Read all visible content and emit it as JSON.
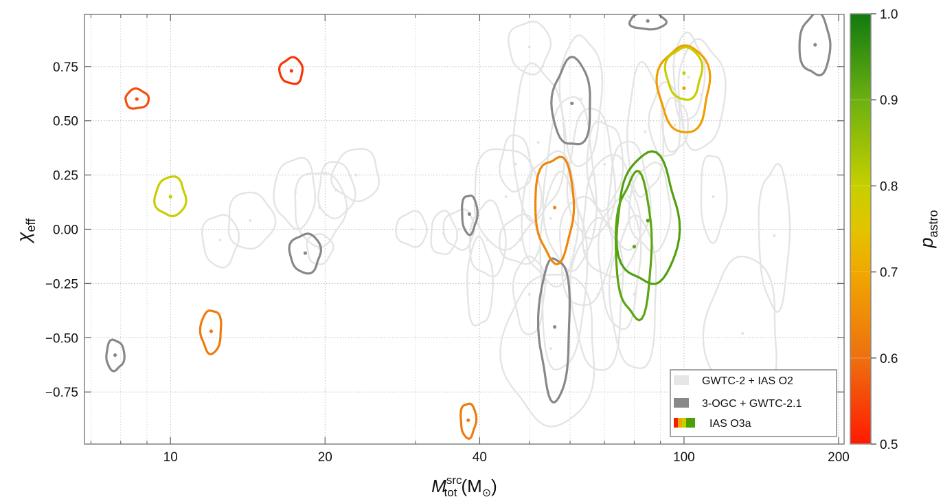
{
  "chart_data": {
    "type": "scatter",
    "title": "",
    "xlabel": {
      "main": "M",
      "sup": "src",
      "sub": "tot",
      "unit": "(M",
      "unit_sub": "⊙",
      "unit_close": ")"
    },
    "ylabel": {
      "main": "χ",
      "sub": "eff"
    },
    "colorbar_label": {
      "main": "p",
      "sub": "astro"
    },
    "x_scale": "log",
    "xlim": [
      6.8,
      205
    ],
    "ylim": [
      -0.99,
      0.99
    ],
    "x_ticks": [
      10,
      20,
      40,
      100,
      200
    ],
    "x_tick_labels": [
      "10",
      "20",
      "40",
      "100",
      "200"
    ],
    "y_ticks": [
      0.75,
      0.5,
      0.25,
      0.0,
      -0.25,
      -0.5,
      -0.75
    ],
    "y_tick_labels": [
      "0.75",
      "0.50",
      "0.25",
      "0.00",
      "−0.25",
      "−0.50",
      "−0.75"
    ],
    "colorbar": {
      "range": [
        0.5,
        1.0
      ],
      "ticks": [
        1.0,
        0.9,
        0.8,
        0.7,
        0.6,
        0.5
      ],
      "tick_labels": [
        "1.0",
        "0.9",
        "0.8",
        "0.7",
        "0.6",
        "0.5"
      ],
      "stops": [
        {
          "v": 0.5,
          "color": "#ff1a00"
        },
        {
          "v": 0.6,
          "color": "#ee7010"
        },
        {
          "v": 0.7,
          "color": "#f0a800"
        },
        {
          "v": 0.75,
          "color": "#e2c400"
        },
        {
          "v": 0.8,
          "color": "#c6cf00"
        },
        {
          "v": 0.9,
          "color": "#6cb010"
        },
        {
          "v": 1.0,
          "color": "#117a11"
        }
      ]
    },
    "grid": true,
    "legend": {
      "position": "bottom-right",
      "entries": [
        {
          "label": "GWTC-2 + IAS O2",
          "color": "#e6e6e6"
        },
        {
          "label": "3-OGC + GWTC-2.1",
          "color": "#888888"
        },
        {
          "label": "IAS O3a",
          "colors": [
            "#ee2200",
            "#f0a800",
            "#c6cf00",
            "#4ea000"
          ]
        }
      ]
    },
    "series": [
      {
        "name": "GWTC-2 + IAS O2",
        "color": "#e4e4e4",
        "points": [
          {
            "x": 12.5,
            "y": -0.05,
            "rx": 0.07,
            "ry": 0.12
          },
          {
            "x": 14.3,
            "y": 0.04,
            "rx": 0.09,
            "ry": 0.13
          },
          {
            "x": 17.5,
            "y": 0.17,
            "rx": 0.08,
            "ry": 0.16
          },
          {
            "x": 19.5,
            "y": 0.1,
            "rx": 0.1,
            "ry": 0.17
          },
          {
            "x": 21.0,
            "y": 0.18,
            "rx": 0.07,
            "ry": 0.13
          },
          {
            "x": 23.0,
            "y": 0.25,
            "rx": 0.09,
            "ry": 0.12
          },
          {
            "x": 19.5,
            "y": -0.09,
            "rx": 0.05,
            "ry": 0.07
          },
          {
            "x": 29.5,
            "y": 0.0,
            "rx": 0.06,
            "ry": 0.08
          },
          {
            "x": 34.0,
            "y": -0.02,
            "rx": 0.05,
            "ry": 0.1
          },
          {
            "x": 36.5,
            "y": 0.0,
            "rx": 0.06,
            "ry": 0.09
          },
          {
            "x": 41.5,
            "y": -0.05,
            "rx": 0.07,
            "ry": 0.17
          },
          {
            "x": 40.0,
            "y": -0.25,
            "rx": 0.05,
            "ry": 0.2
          },
          {
            "x": 45.0,
            "y": 0.15,
            "rx": 0.13,
            "ry": 0.23
          },
          {
            "x": 48.0,
            "y": -0.05,
            "rx": 0.08,
            "ry": 0.11
          },
          {
            "x": 50.0,
            "y": 0.84,
            "rx": 0.08,
            "ry": 0.12
          },
          {
            "x": 52.0,
            "y": 0.4,
            "rx": 0.1,
            "ry": 0.35
          },
          {
            "x": 55.0,
            "y": 0.05,
            "rx": 0.11,
            "ry": 0.3
          },
          {
            "x": 58.0,
            "y": -0.2,
            "rx": 0.09,
            "ry": 0.45
          },
          {
            "x": 60.0,
            "y": 0.2,
            "rx": 0.1,
            "ry": 0.4
          },
          {
            "x": 63.0,
            "y": 0.6,
            "rx": 0.08,
            "ry": 0.3
          },
          {
            "x": 64.0,
            "y": -0.1,
            "rx": 0.1,
            "ry": 0.25
          },
          {
            "x": 66.0,
            "y": 0.25,
            "rx": 0.09,
            "ry": 0.3
          },
          {
            "x": 68.0,
            "y": -0.3,
            "rx": 0.1,
            "ry": 0.35
          },
          {
            "x": 70.0,
            "y": 0.3,
            "rx": 0.07,
            "ry": 0.2
          },
          {
            "x": 72.0,
            "y": 0.05,
            "rx": 0.11,
            "ry": 0.28
          },
          {
            "x": 75.0,
            "y": -0.15,
            "rx": 0.08,
            "ry": 0.3
          },
          {
            "x": 78.0,
            "y": 0.15,
            "rx": 0.08,
            "ry": 0.25
          },
          {
            "x": 80.0,
            "y": -0.3,
            "rx": 0.09,
            "ry": 0.35
          },
          {
            "x": 84.0,
            "y": 0.45,
            "rx": 0.07,
            "ry": 0.3
          },
          {
            "x": 86.0,
            "y": 0.1,
            "rx": 0.08,
            "ry": 0.2
          },
          {
            "x": 92.0,
            "y": 0.5,
            "rx": 0.06,
            "ry": 0.17
          },
          {
            "x": 96.0,
            "y": 0.48,
            "rx": 0.05,
            "ry": 0.12
          },
          {
            "x": 102.0,
            "y": 0.7,
            "rx": 0.06,
            "ry": 0.2
          },
          {
            "x": 108.0,
            "y": 0.62,
            "rx": 0.09,
            "ry": 0.25
          },
          {
            "x": 114.0,
            "y": 0.15,
            "rx": 0.05,
            "ry": 0.2
          },
          {
            "x": 150.0,
            "y": -0.03,
            "rx": 0.06,
            "ry": 0.33
          },
          {
            "x": 130.0,
            "y": -0.48,
            "rx": 0.14,
            "ry": 0.35
          },
          {
            "x": 55.0,
            "y": -0.55,
            "rx": 0.18,
            "ry": 0.35
          },
          {
            "x": 50.0,
            "y": -0.3,
            "rx": 0.06,
            "ry": 0.18
          },
          {
            "x": 47.0,
            "y": 0.3,
            "rx": 0.06,
            "ry": 0.13
          }
        ]
      },
      {
        "name": "3-OGC + GWTC-2.1",
        "color": "#888888",
        "points": [
          {
            "x": 7.8,
            "y": -0.58,
            "rx": 0.035,
            "ry": 0.07
          },
          {
            "x": 18.3,
            "y": -0.11,
            "rx": 0.06,
            "ry": 0.09
          },
          {
            "x": 38.2,
            "y": 0.07,
            "rx": 0.03,
            "ry": 0.09
          },
          {
            "x": 56.0,
            "y": -0.45,
            "rx": 0.06,
            "ry": 0.33
          },
          {
            "x": 60.5,
            "y": 0.58,
            "rx": 0.075,
            "ry": 0.2
          },
          {
            "x": 85.0,
            "y": 0.96,
            "rx": 0.07,
            "ry": 0.04
          },
          {
            "x": 180.0,
            "y": 0.85,
            "rx": 0.06,
            "ry": 0.14
          }
        ]
      },
      {
        "name": "IAS O3a",
        "points": [
          {
            "x": 8.6,
            "y": 0.6,
            "rx": 0.045,
            "ry": 0.045,
            "p": 0.56
          },
          {
            "x": 17.2,
            "y": 0.73,
            "rx": 0.045,
            "ry": 0.06,
            "p": 0.53
          },
          {
            "x": 10.0,
            "y": 0.15,
            "rx": 0.06,
            "ry": 0.09,
            "p": 0.8
          },
          {
            "x": 12.0,
            "y": -0.47,
            "rx": 0.04,
            "ry": 0.1,
            "p": 0.62
          },
          {
            "x": 38.0,
            "y": -0.88,
            "rx": 0.03,
            "ry": 0.08,
            "p": 0.62
          },
          {
            "x": 56.0,
            "y": 0.1,
            "rx": 0.075,
            "ry": 0.24,
            "p": 0.64
          },
          {
            "x": 100.0,
            "y": 0.65,
            "rx": 0.1,
            "ry": 0.2,
            "p": 0.68
          },
          {
            "x": 100.0,
            "y": 0.72,
            "rx": 0.07,
            "ry": 0.12,
            "p": 0.8
          },
          {
            "x": 85.0,
            "y": 0.04,
            "rx": 0.12,
            "ry": 0.3,
            "p": 0.93
          },
          {
            "x": 80.0,
            "y": -0.08,
            "rx": 0.07,
            "ry": 0.33,
            "p": 0.92
          }
        ]
      }
    ]
  }
}
